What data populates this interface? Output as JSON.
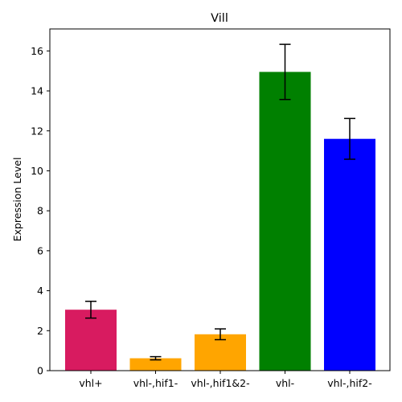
{
  "chart_data": {
    "type": "bar",
    "title": "Vill",
    "xlabel": "",
    "ylabel": "Expression Level",
    "categories": [
      "vhl+",
      "vhl-,hif1-",
      "vhl-,hif1&2-",
      "vhl-",
      "vhl-,hif2-"
    ],
    "values": [
      3.05,
      0.62,
      1.82,
      14.95,
      11.6
    ],
    "errors": [
      0.42,
      0.08,
      0.27,
      1.38,
      1.02
    ],
    "colors": [
      "#d81b60",
      "#ffa500",
      "#ffa500",
      "#008000",
      "#0000ff"
    ],
    "ylim": [
      0,
      17.1
    ],
    "yticks": [
      0,
      2,
      4,
      6,
      8,
      10,
      12,
      14,
      16
    ],
    "grid": false,
    "legend": "none"
  }
}
